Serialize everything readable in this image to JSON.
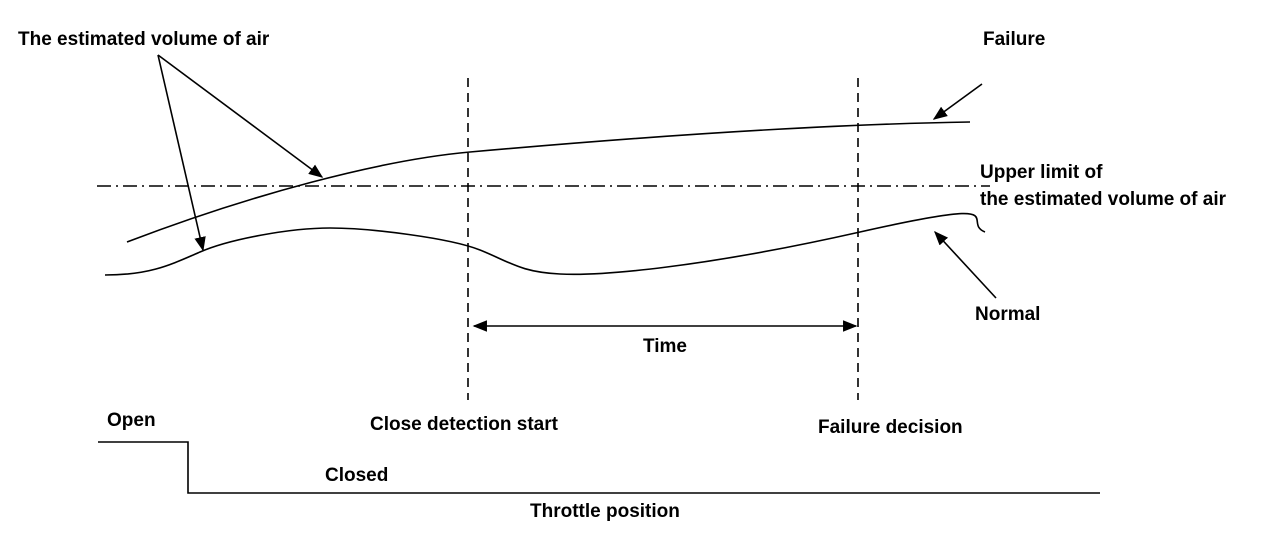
{
  "labels": {
    "estimated_volume": "The estimated volume of air",
    "failure": "Failure",
    "upper_limit_line1": "Upper limit of",
    "upper_limit_line2": "the estimated volume of air",
    "normal": "Normal",
    "time": "Time",
    "open": "Open",
    "close_detection_start": "Close detection start",
    "failure_decision": "Failure decision",
    "closed": "Closed",
    "throttle_position": "Throttle position"
  }
}
